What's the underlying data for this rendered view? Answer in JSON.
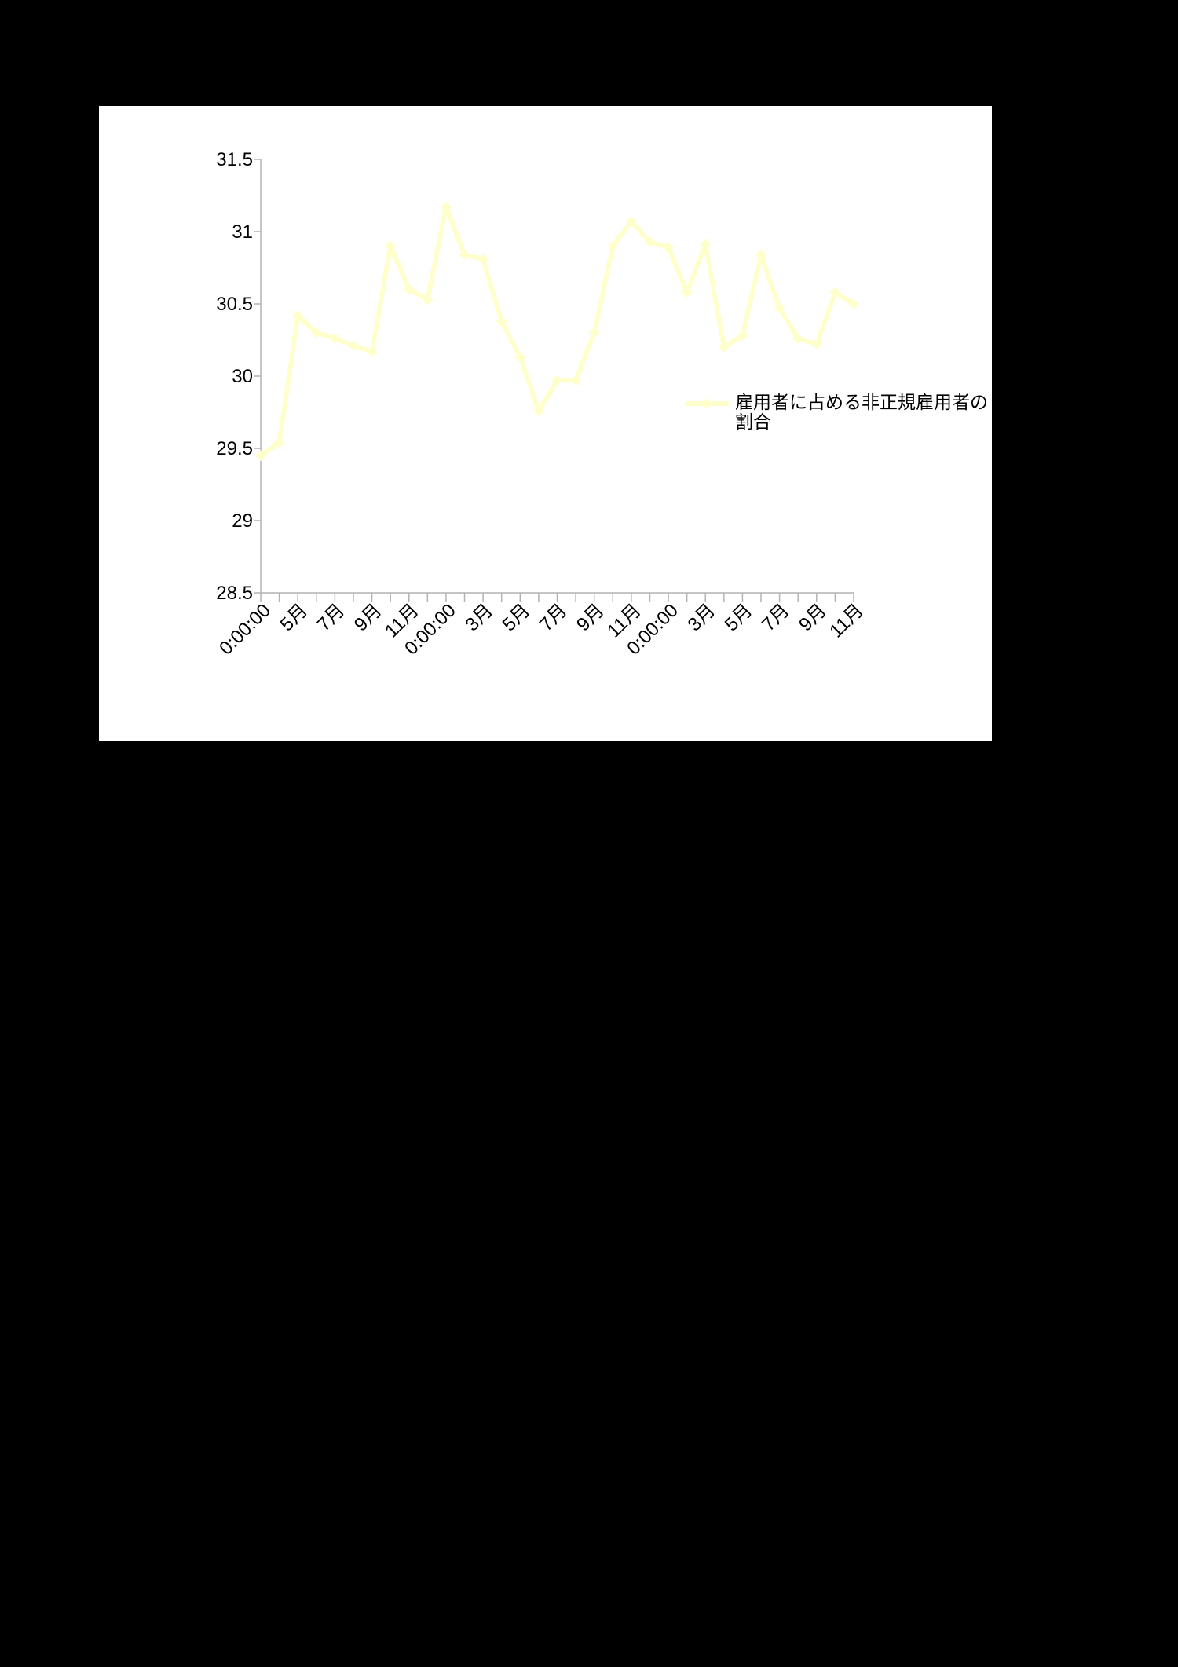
{
  "chart_data": {
    "type": "line",
    "title": "",
    "xlabel": "",
    "ylabel": "",
    "ylim": [
      28.5,
      31.5
    ],
    "yticks": [
      "31.5",
      "31",
      "30.5",
      "30",
      "29.5",
      "29",
      "28.5"
    ],
    "ytick_values": [
      31.5,
      31,
      30.5,
      30,
      29.5,
      29,
      28.5
    ],
    "xtick_labels": [
      "0:00:00",
      "5月",
      "7月",
      "9月",
      "11月",
      "0:00:00",
      "3月",
      "5月",
      "7月",
      "9月",
      "11月",
      "0:00:00",
      "3月",
      "5月",
      "7月",
      "9月",
      "11月"
    ],
    "xtick_label_every": 2,
    "grid": false,
    "legend_position": "right",
    "series": [
      {
        "name": "雇用者に占める非正規雇用者の割合",
        "color": "#ffffcc",
        "marker": "diamond",
        "values": [
          29.45,
          29.54,
          30.42,
          30.3,
          30.26,
          30.21,
          30.17,
          30.9,
          30.6,
          30.53,
          31.17,
          30.84,
          30.81,
          30.38,
          30.13,
          29.76,
          29.97,
          29.97,
          30.3,
          30.9,
          31.07,
          30.93,
          30.89,
          30.58,
          30.91,
          30.2,
          30.28,
          30.84,
          30.47,
          30.26,
          30.22,
          30.58,
          30.5
        ]
      }
    ]
  },
  "legend": {
    "label": "雇用者に占める非正規雇用者の割合"
  },
  "colors": {
    "background": "#000000",
    "plot_background": "#ffffff",
    "axis": "#b3b3b3"
  }
}
